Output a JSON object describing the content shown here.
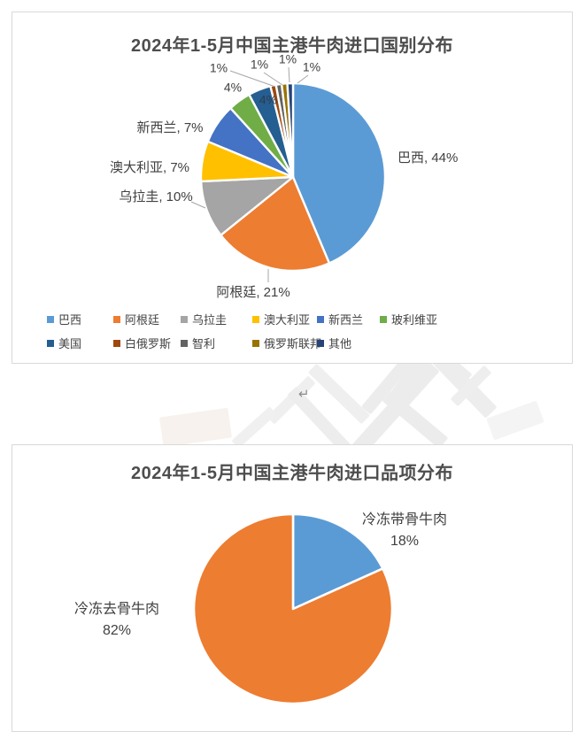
{
  "page": {
    "return_mark": "↵"
  },
  "chart_data": [
    {
      "type": "pie",
      "title": "2024年1-5月中国主港牛肉进口国别分布",
      "unit": "percent",
      "legend_position": "bottom",
      "categories": [
        "巴西",
        "阿根廷",
        "乌拉圭",
        "澳大利亚",
        "新西兰",
        "玻利维亚",
        "美国",
        "白俄罗斯",
        "智利",
        "俄罗斯联邦",
        "其他"
      ],
      "values": [
        44,
        21,
        10,
        7,
        7,
        4,
        4,
        1,
        1,
        1,
        1
      ],
      "colors": [
        "#5B9BD5",
        "#ED7D31",
        "#A5A5A5",
        "#FFC000",
        "#4472C4",
        "#70AD47",
        "#255E91",
        "#9E480E",
        "#636363",
        "#997300",
        "#264478"
      ],
      "slice_labels": [
        "巴西, 44%",
        "阿根廷, 21%",
        "乌拉圭, 10%",
        "澳大利亚, 7%",
        "新西兰, 7%",
        "4%",
        "4%",
        "1%",
        "1%",
        "1%",
        "1%"
      ]
    },
    {
      "type": "pie",
      "title": "2024年1-5月中国主港牛肉进口品项分布",
      "unit": "percent",
      "legend_position": "none",
      "categories": [
        "冷冻带骨牛肉",
        "冷冻去骨牛肉"
      ],
      "values": [
        18,
        82
      ],
      "colors": [
        "#5B9BD5",
        "#ED7D31"
      ],
      "slice_labels": [
        "冷冻带骨牛肉\n18%",
        "冷冻去骨牛肉\n82%"
      ]
    }
  ]
}
